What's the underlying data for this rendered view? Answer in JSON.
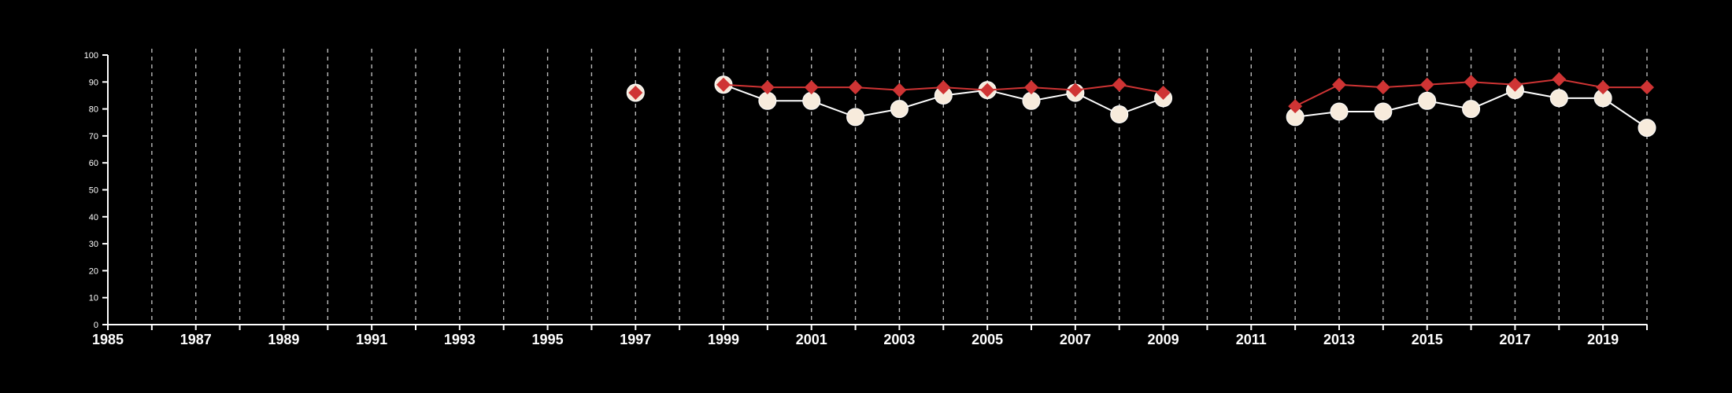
{
  "chart_data": {
    "type": "line",
    "title": "",
    "xlabel": "",
    "ylabel": "",
    "xlim": [
      1985,
      2020
    ],
    "ylim": [
      0,
      100
    ],
    "x_ticks": [
      1985,
      1987,
      1989,
      1991,
      1993,
      1995,
      1997,
      1999,
      2001,
      2003,
      2005,
      2007,
      2009,
      2011,
      2013,
      2015,
      2017,
      2019
    ],
    "y_ticks": [
      0,
      10,
      20,
      30,
      40,
      50,
      60,
      70,
      80,
      90,
      100
    ],
    "vertical_gridlines": "dashed, every year",
    "legend": "none",
    "colors": {
      "background": "#000000",
      "axis": "#ffffff",
      "grid": "#bbbbbb",
      "series_circle_fill": "#f7ebdc",
      "series_circle_line": "#ffffff",
      "series_diamond": "#cf3434"
    },
    "series": [
      {
        "marker": "circle",
        "color": "#f7ebdc",
        "points": [
          [
            1997,
            86
          ],
          [
            1999,
            89
          ],
          [
            2000,
            83
          ],
          [
            2001,
            83
          ],
          [
            2002,
            77
          ],
          [
            2003,
            80
          ],
          [
            2004,
            85
          ],
          [
            2005,
            87
          ],
          [
            2006,
            83
          ],
          [
            2007,
            86
          ],
          [
            2008,
            78
          ],
          [
            2009,
            84
          ],
          [
            2012,
            77
          ],
          [
            2013,
            79
          ],
          [
            2014,
            79
          ],
          [
            2015,
            83
          ],
          [
            2016,
            80
          ],
          [
            2017,
            87
          ],
          [
            2018,
            84
          ],
          [
            2019,
            84
          ],
          [
            2020,
            73
          ]
        ]
      },
      {
        "marker": "diamond",
        "color": "#cf3434",
        "points": [
          [
            1997,
            86
          ],
          [
            1999,
            89
          ],
          [
            2000,
            88
          ],
          [
            2001,
            88
          ],
          [
            2002,
            88
          ],
          [
            2003,
            87
          ],
          [
            2004,
            88
          ],
          [
            2005,
            87
          ],
          [
            2006,
            88
          ],
          [
            2007,
            87
          ],
          [
            2008,
            89
          ],
          [
            2009,
            86
          ],
          [
            2012,
            81
          ],
          [
            2013,
            89
          ],
          [
            2014,
            88
          ],
          [
            2015,
            89
          ],
          [
            2016,
            90
          ],
          [
            2017,
            89
          ],
          [
            2018,
            91
          ],
          [
            2019,
            88
          ],
          [
            2020,
            88
          ]
        ]
      }
    ]
  }
}
